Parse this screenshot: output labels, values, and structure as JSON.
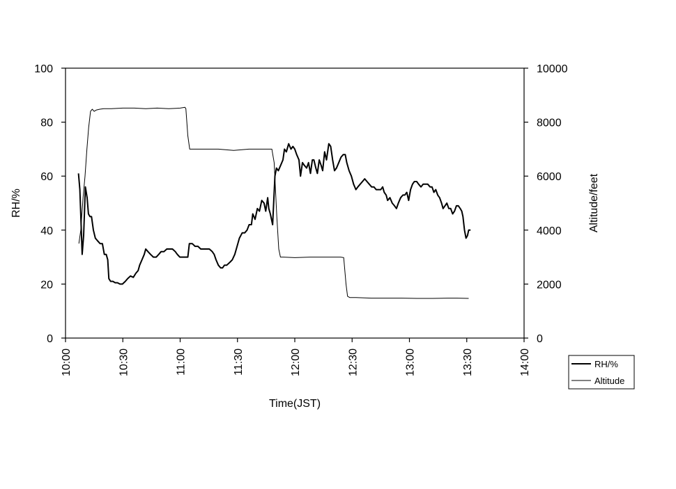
{
  "chart_data": {
    "type": "line",
    "title": "",
    "xlabel": "Time(JST)",
    "ylabel_left": "RH/%",
    "ylabel_right": "Altitude/feet",
    "x_ticks": [
      "10:00",
      "10:30",
      "11:00",
      "11:30",
      "12:00",
      "12:30",
      "13:00",
      "13:30",
      "14:00"
    ],
    "x_tick_minutes": [
      0,
      30,
      60,
      90,
      120,
      150,
      180,
      210,
      240
    ],
    "xlim_minutes": [
      0,
      240
    ],
    "ylim_left": [
      0,
      100
    ],
    "y_ticks_left": [
      0,
      20,
      40,
      60,
      80,
      100
    ],
    "ylim_right": [
      0,
      10000
    ],
    "y_ticks_right": [
      0,
      2000,
      4000,
      6000,
      8000,
      10000
    ],
    "grid": false,
    "legend_position": "bottom-right",
    "series": [
      {
        "name": "RH/%",
        "axis": "left",
        "color": "#000000",
        "points": [
          [
            6.8,
            61
          ],
          [
            7.5,
            55
          ],
          [
            8.7,
            31
          ],
          [
            9.5,
            38
          ],
          [
            10.4,
            56
          ],
          [
            11.3,
            52
          ],
          [
            12.0,
            46
          ],
          [
            12.8,
            45
          ],
          [
            13.6,
            45
          ],
          [
            14.6,
            40
          ],
          [
            15.6,
            37
          ],
          [
            16.8,
            36
          ],
          [
            18.1,
            35
          ],
          [
            19.3,
            35
          ],
          [
            20.3,
            31
          ],
          [
            21.3,
            31
          ],
          [
            22.1,
            29
          ],
          [
            22.7,
            22
          ],
          [
            23.6,
            21
          ],
          [
            24.8,
            21
          ],
          [
            26.0,
            20.5
          ],
          [
            27.2,
            20.5
          ],
          [
            28.5,
            20
          ],
          [
            29.8,
            20
          ],
          [
            31.3,
            21
          ],
          [
            32.5,
            22
          ],
          [
            34.0,
            23
          ],
          [
            35.5,
            22.5
          ],
          [
            36.8,
            24
          ],
          [
            38.0,
            25
          ],
          [
            38.8,
            27
          ],
          [
            40.0,
            29
          ],
          [
            41.2,
            31
          ],
          [
            42.0,
            33
          ],
          [
            43.2,
            32
          ],
          [
            44.5,
            31
          ],
          [
            46.0,
            30
          ],
          [
            47.5,
            30
          ],
          [
            48.8,
            31
          ],
          [
            50.0,
            32
          ],
          [
            51.5,
            32
          ],
          [
            53.0,
            33
          ],
          [
            54.5,
            33
          ],
          [
            56.0,
            33
          ],
          [
            57.5,
            32
          ],
          [
            58.5,
            31
          ],
          [
            59.8,
            30
          ],
          [
            61.3,
            30
          ],
          [
            62.8,
            30
          ],
          [
            64.0,
            30
          ],
          [
            64.8,
            35
          ],
          [
            66.3,
            35
          ],
          [
            67.8,
            34
          ],
          [
            69.3,
            34
          ],
          [
            70.8,
            33
          ],
          [
            72.3,
            33
          ],
          [
            73.8,
            33
          ],
          [
            75.3,
            33
          ],
          [
            76.8,
            32
          ],
          [
            77.8,
            31
          ],
          [
            78.8,
            29
          ],
          [
            80.0,
            27
          ],
          [
            81.2,
            26
          ],
          [
            82.2,
            26
          ],
          [
            83.2,
            27
          ],
          [
            84.4,
            27
          ],
          [
            85.9,
            28
          ],
          [
            87.3,
            29
          ],
          [
            88.6,
            31
          ],
          [
            89.8,
            34
          ],
          [
            91.0,
            37
          ],
          [
            92.5,
            39
          ],
          [
            93.8,
            39
          ],
          [
            95.0,
            40
          ],
          [
            96.1,
            42
          ],
          [
            97.3,
            42
          ],
          [
            98.0,
            46
          ],
          [
            99.2,
            44
          ],
          [
            100.4,
            48
          ],
          [
            101.5,
            47
          ],
          [
            102.7,
            51
          ],
          [
            103.9,
            50
          ],
          [
            104.8,
            47
          ],
          [
            105.8,
            52
          ],
          [
            106.4,
            48
          ],
          [
            107.2,
            46
          ],
          [
            108.4,
            42
          ],
          [
            109.6,
            60
          ],
          [
            110.4,
            63
          ],
          [
            111.4,
            62
          ],
          [
            112.6,
            64
          ],
          [
            113.8,
            66
          ],
          [
            114.6,
            70
          ],
          [
            115.6,
            69
          ],
          [
            116.8,
            72
          ],
          [
            118.0,
            70
          ],
          [
            119.0,
            71
          ],
          [
            120.0,
            70
          ],
          [
            121.0,
            68
          ],
          [
            122.2,
            66
          ],
          [
            123.0,
            60
          ],
          [
            124.0,
            65
          ],
          [
            125.0,
            64
          ],
          [
            126.2,
            63
          ],
          [
            127.2,
            65
          ],
          [
            128.2,
            61
          ],
          [
            129.2,
            66
          ],
          [
            130.0,
            66
          ],
          [
            131.0,
            63
          ],
          [
            131.8,
            61
          ],
          [
            132.8,
            66
          ],
          [
            133.8,
            64
          ],
          [
            134.6,
            62
          ],
          [
            135.6,
            69
          ],
          [
            136.6,
            66
          ],
          [
            137.8,
            72
          ],
          [
            138.8,
            71
          ],
          [
            139.8,
            66
          ],
          [
            140.8,
            62
          ],
          [
            141.8,
            63
          ],
          [
            143.0,
            65
          ],
          [
            144.2,
            67
          ],
          [
            145.4,
            68
          ],
          [
            146.4,
            68
          ],
          [
            147.2,
            65
          ],
          [
            148.4,
            62
          ],
          [
            149.6,
            60
          ],
          [
            150.8,
            57
          ],
          [
            152.0,
            55
          ],
          [
            153.0,
            56
          ],
          [
            154.2,
            57
          ],
          [
            155.4,
            58
          ],
          [
            156.6,
            59
          ],
          [
            157.8,
            58
          ],
          [
            159.0,
            57
          ],
          [
            160.2,
            56
          ],
          [
            161.4,
            56
          ],
          [
            162.6,
            55
          ],
          [
            163.8,
            55
          ],
          [
            165.0,
            55
          ],
          [
            166.0,
            56
          ],
          [
            166.8,
            54
          ],
          [
            167.8,
            53
          ],
          [
            168.6,
            51
          ],
          [
            169.8,
            52
          ],
          [
            171.0,
            50
          ],
          [
            172.2,
            49
          ],
          [
            173.2,
            48
          ],
          [
            174.2,
            50
          ],
          [
            175.4,
            52
          ],
          [
            176.6,
            53
          ],
          [
            177.6,
            53
          ],
          [
            178.6,
            54
          ],
          [
            179.6,
            51
          ],
          [
            180.6,
            55
          ],
          [
            181.6,
            57
          ],
          [
            182.6,
            58
          ],
          [
            183.8,
            58
          ],
          [
            184.8,
            57
          ],
          [
            186.0,
            56
          ],
          [
            187.2,
            57
          ],
          [
            188.4,
            57
          ],
          [
            189.6,
            57
          ],
          [
            190.8,
            56
          ],
          [
            191.8,
            56
          ],
          [
            192.8,
            54
          ],
          [
            193.8,
            55
          ],
          [
            194.8,
            53
          ],
          [
            195.8,
            52
          ],
          [
            196.8,
            50
          ],
          [
            197.6,
            48
          ],
          [
            198.6,
            49
          ],
          [
            199.6,
            50
          ],
          [
            200.6,
            48
          ],
          [
            201.6,
            48
          ],
          [
            202.6,
            46
          ],
          [
            203.6,
            47
          ],
          [
            204.6,
            49
          ],
          [
            205.6,
            49
          ],
          [
            206.6,
            48
          ],
          [
            207.4,
            47
          ],
          [
            208.0,
            45
          ],
          [
            208.8,
            40
          ],
          [
            209.6,
            37
          ],
          [
            210.4,
            38
          ],
          [
            211.0,
            40
          ],
          [
            212.0,
            40
          ]
        ]
      },
      {
        "name": "Altitude",
        "axis": "right",
        "color": "#000000",
        "points": [
          [
            7.0,
            3500
          ],
          [
            8.0,
            4000
          ],
          [
            9.2,
            5200
          ],
          [
            10.2,
            6000
          ],
          [
            11.2,
            7000
          ],
          [
            12.1,
            7800
          ],
          [
            13.1,
            8400
          ],
          [
            14.0,
            8480
          ],
          [
            15.0,
            8400
          ],
          [
            16.2,
            8450
          ],
          [
            18.0,
            8480
          ],
          [
            20.0,
            8500
          ],
          [
            24.0,
            8500
          ],
          [
            30.0,
            8520
          ],
          [
            36.0,
            8520
          ],
          [
            42.0,
            8500
          ],
          [
            48.0,
            8520
          ],
          [
            54.0,
            8500
          ],
          [
            60.0,
            8520
          ],
          [
            62.5,
            8550
          ],
          [
            63.0,
            8500
          ],
          [
            64.0,
            7500
          ],
          [
            65.0,
            7000
          ],
          [
            66.0,
            7000
          ],
          [
            72.0,
            7000
          ],
          [
            80.0,
            7000
          ],
          [
            88.0,
            6950
          ],
          [
            96.0,
            7000
          ],
          [
            104.0,
            7000
          ],
          [
            108.0,
            7000
          ],
          [
            109.2,
            6500
          ],
          [
            110.6,
            4500
          ],
          [
            111.6,
            3300
          ],
          [
            112.5,
            3000
          ],
          [
            114.0,
            3000
          ],
          [
            120.0,
            2980
          ],
          [
            128.0,
            3000
          ],
          [
            136.0,
            3000
          ],
          [
            144.0,
            3000
          ],
          [
            145.6,
            2980
          ],
          [
            146.8,
            2000
          ],
          [
            147.6,
            1550
          ],
          [
            148.8,
            1500
          ],
          [
            152.0,
            1500
          ],
          [
            160.0,
            1480
          ],
          [
            168.0,
            1480
          ],
          [
            176.0,
            1480
          ],
          [
            184.0,
            1470
          ],
          [
            192.0,
            1470
          ],
          [
            200.0,
            1480
          ],
          [
            205.0,
            1480
          ],
          [
            211.0,
            1470
          ]
        ]
      }
    ]
  }
}
